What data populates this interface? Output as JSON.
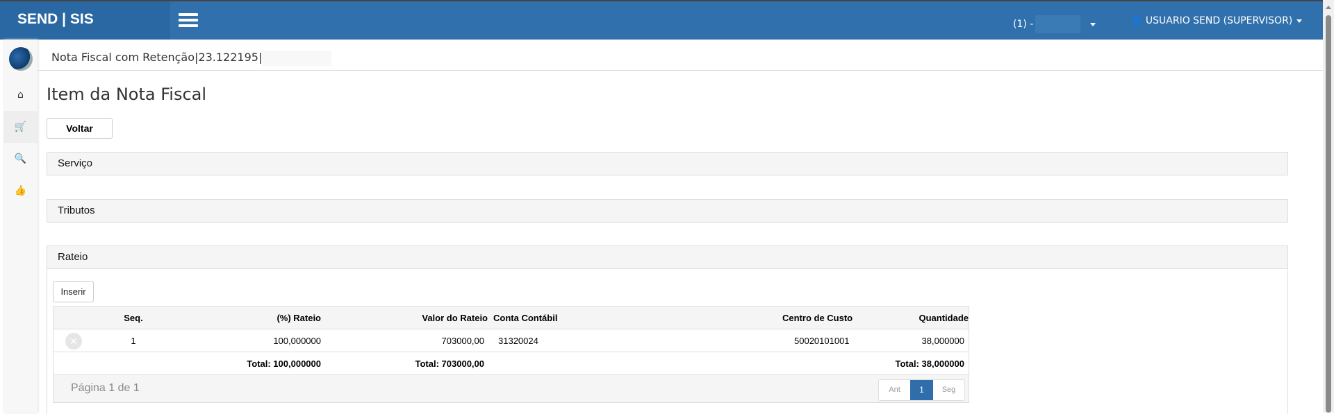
{
  "header": {
    "brand": "SEND | SIS",
    "environment": "(1) -",
    "user": "USUARIO SEND (SUPERVISOR)"
  },
  "sidebar": {
    "items": [
      {
        "icon": "home-icon"
      },
      {
        "icon": "shopping-cart-icon"
      },
      {
        "icon": "search-icon"
      },
      {
        "icon": "thumbs-up-icon"
      }
    ]
  },
  "breadcrumb": "Nota Fiscal com Retenção|23.122195|",
  "page_title": "Item da Nota Fiscal",
  "back_button": "Voltar",
  "panels": {
    "servico": "Serviço",
    "tributos": "Tributos",
    "rateio": "Rateio"
  },
  "rateio": {
    "insert_button": "Inserir",
    "columns": [
      "Seq.",
      "(%) Rateio",
      "Valor do Rateio",
      "Conta Contábil",
      "Centro de Custo",
      "Quantidade"
    ],
    "rows": [
      {
        "seq": "1",
        "rateio": "100,000000",
        "valor": "703000,00",
        "conta": "31320024",
        "centro": "50020101001",
        "quantidade": "38,000000"
      }
    ],
    "totals": {
      "rateio": "Total: 100,000000",
      "valor": "Total: 703000,00",
      "quantidade": "Total: 38,000000"
    },
    "pagination": {
      "label": "Página 1 de 1",
      "prev": "Ant",
      "current": "1",
      "next": "Seg"
    }
  },
  "colors": {
    "header": "#3071ad",
    "brand": "#2a68a3",
    "active_page": "#2f6eab"
  }
}
